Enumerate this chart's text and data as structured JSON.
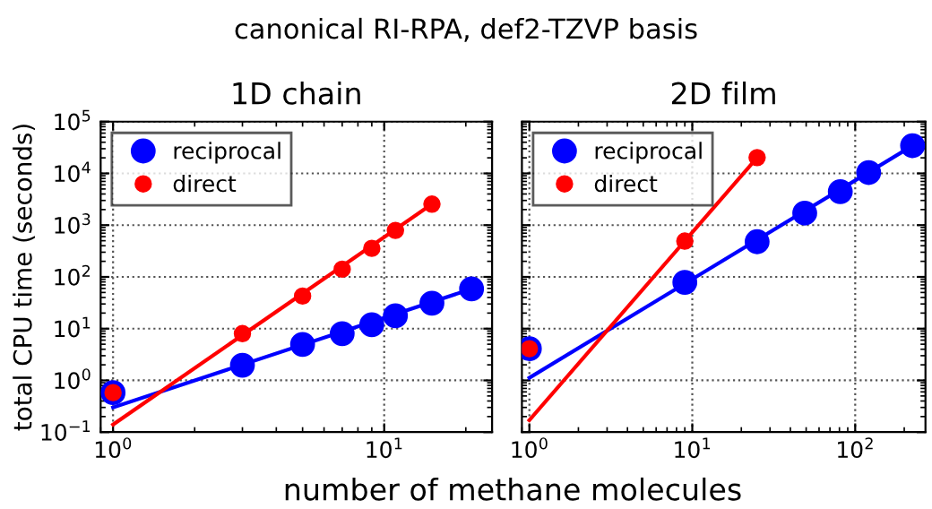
{
  "chart_data": [
    {
      "type": "scatter",
      "title": "canonical RI-RPA, def2-TZVP basis",
      "subtitle": "1D chain",
      "xlabel": "number of methane molecules",
      "ylabel": "total CPU time (seconds)",
      "log": "xy",
      "grid": true,
      "legend": "top left",
      "marker": "circle",
      "xlim": [
        0.9,
        25
      ],
      "ylim": [
        0.1,
        100000
      ],
      "xticks": [
        {
          "value": 1,
          "label": "10$^{0}$"
        },
        {
          "value": 10,
          "label": "10$^{1}$"
        }
      ],
      "yticks": [
        {
          "value": 0.1,
          "label": "10$^{−1}$"
        },
        {
          "value": 1,
          "label": "10$^{0}$"
        },
        {
          "value": 10,
          "label": "10$^{1}$"
        },
        {
          "value": 100,
          "label": "10$^{2}$"
        },
        {
          "value": 1000,
          "label": "10$^{3}$"
        },
        {
          "value": 10000,
          "label": "10$^{4}$"
        },
        {
          "value": 100000,
          "label": "10$^{5}$"
        }
      ],
      "series": [
        {
          "type": "line",
          "marker": "none",
          "color": "#0000ff",
          "x": [
            1,
            21
          ],
          "values": [
            0.3,
            58.6
          ]
        },
        {
          "type": "line",
          "marker": "none",
          "color": "#ff0000",
          "x": [
            1,
            15
          ],
          "values": [
            0.14,
            2550
          ]
        },
        {
          "name": "reciprocal",
          "color": "#0000ff",
          "x": [
            1,
            3,
            5,
            7,
            9,
            11,
            15,
            21
          ],
          "values": [
            0.58,
            1.96,
            4.96,
            8.0,
            11.9,
            17.7,
            31,
            58.6
          ]
        },
        {
          "name": "direct",
          "color": "#ff0000",
          "x": [
            1,
            3,
            5,
            7,
            9,
            11,
            15
          ],
          "values": [
            0.58,
            8.0,
            42.6,
            141,
            356,
            791,
            2550
          ]
        }
      ]
    },
    {
      "type": "scatter",
      "subtitle": "2D film",
      "log": "xy",
      "grid": true,
      "legend": "top left",
      "marker": "circle",
      "tick_labels": "x",
      "xlim": [
        0.9,
        270
      ],
      "ylim": [
        0.1,
        100000
      ],
      "xticks": [
        {
          "value": 1,
          "label": "10$^{0}$"
        },
        {
          "value": 10,
          "label": "10$^{1}$"
        },
        {
          "value": 100,
          "label": "10$^{2}$"
        }
      ],
      "yticks": [
        0.1,
        1,
        10,
        100,
        1000,
        10000,
        100000
      ],
      "series": [
        {
          "type": "line",
          "marker": "none",
          "color": "#0000ff",
          "x": [
            1,
            225
          ],
          "values": [
            1.12,
            34400
          ]
        },
        {
          "type": "line",
          "marker": "none",
          "color": "#ff0000",
          "x": [
            1,
            25
          ],
          "values": [
            0.17,
            20200
          ]
        },
        {
          "name": "reciprocal",
          "color": "#0000ff",
          "x": [
            1,
            9,
            25,
            49,
            81,
            121,
            225
          ],
          "values": [
            4.1,
            78.5,
            478,
            1710,
            4450,
            10400,
            34400
          ]
        },
        {
          "name": "direct",
          "color": "#ff0000",
          "x": [
            1,
            9,
            25
          ],
          "values": [
            4.1,
            491,
            20200
          ]
        }
      ]
    }
  ]
}
